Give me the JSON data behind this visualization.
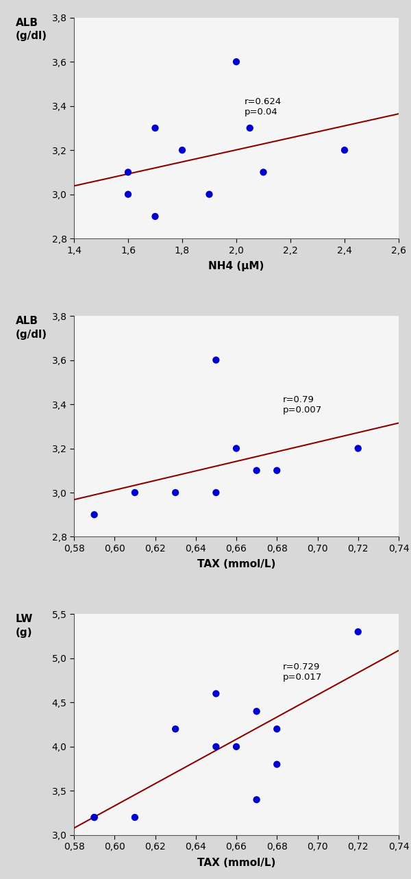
{
  "plot1": {
    "x": [
      1.6,
      1.6,
      1.7,
      1.7,
      1.8,
      1.9,
      2.0,
      2.05,
      2.1,
      2.4
    ],
    "y": [
      3.1,
      3.0,
      3.3,
      2.9,
      3.2,
      3.0,
      3.6,
      3.3,
      3.1,
      3.2
    ],
    "xlabel": "NH4 (μM)",
    "ylabel": "ALB\n(g/dl)",
    "xlim": [
      1.4,
      2.6
    ],
    "ylim": [
      2.8,
      3.8
    ],
    "xticks": [
      1.4,
      1.6,
      1.8,
      2.0,
      2.2,
      2.4,
      2.6
    ],
    "yticks": [
      2.8,
      3.0,
      3.2,
      3.4,
      3.6,
      3.8
    ],
    "annotation": "r=0.624\np=0.04",
    "ann_x": 2.03,
    "ann_y": 3.44
  },
  "plot2": {
    "x": [
      0.59,
      0.61,
      0.63,
      0.65,
      0.65,
      0.66,
      0.67,
      0.68,
      0.72
    ],
    "y": [
      2.9,
      3.0,
      3.0,
      3.6,
      3.0,
      3.2,
      3.1,
      3.1,
      3.2
    ],
    "xlabel": "TAX (mmol/L)",
    "ylabel": "ALB\n(g/dl)",
    "xlim": [
      0.58,
      0.74
    ],
    "ylim": [
      2.8,
      3.8
    ],
    "xticks": [
      0.58,
      0.6,
      0.62,
      0.64,
      0.66,
      0.68,
      0.7,
      0.72,
      0.74
    ],
    "yticks": [
      2.8,
      3.0,
      3.2,
      3.4,
      3.6,
      3.8
    ],
    "annotation": "r=0.79\np=0.007",
    "ann_x": 0.683,
    "ann_y": 3.44
  },
  "plot3": {
    "x": [
      0.59,
      0.59,
      0.61,
      0.63,
      0.65,
      0.65,
      0.66,
      0.67,
      0.67,
      0.68,
      0.68,
      0.72
    ],
    "y": [
      3.2,
      3.2,
      3.2,
      4.2,
      4.6,
      4.0,
      4.0,
      4.4,
      3.4,
      4.2,
      3.8,
      5.3
    ],
    "xlabel": "TAX (mmol/L)",
    "ylabel": "LW\n(g)",
    "xlim": [
      0.58,
      0.74
    ],
    "ylim": [
      3.0,
      5.5
    ],
    "xticks": [
      0.58,
      0.6,
      0.62,
      0.64,
      0.66,
      0.68,
      0.7,
      0.72,
      0.74
    ],
    "yticks": [
      3.0,
      3.5,
      4.0,
      4.5,
      5.0,
      5.5
    ],
    "annotation": "r=0.729\np=0.017",
    "ann_x": 0.683,
    "ann_y": 4.95
  },
  "dot_color": "#0000CC",
  "line_color": "#8B0000",
  "bg_color": "#f5f5f5",
  "dot_size": 55,
  "line_width": 1.5
}
